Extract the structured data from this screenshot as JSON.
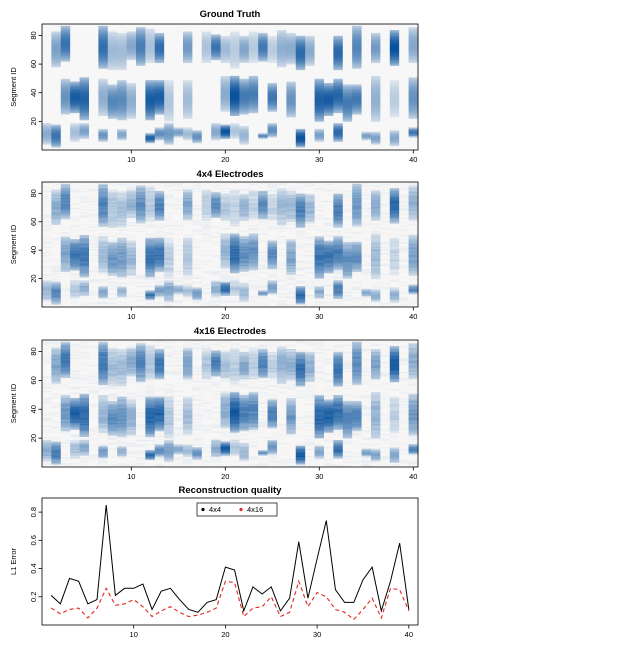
{
  "chart_data": [
    {
      "type": "heatmap",
      "title": "Ground Truth",
      "ylabel": "Segment ID",
      "xlabel": "",
      "xlim": [
        0.5,
        40.5
      ],
      "ylim": [
        0,
        88
      ],
      "xticks": [
        10,
        20,
        30,
        40
      ],
      "yticks": [
        20,
        40,
        60,
        80
      ],
      "colormap": {
        "neg": "#fbe3d8",
        "zero": "#f7f7f7",
        "pos": "#08519c"
      },
      "intensity_scale": 1.0,
      "seed": 11
    },
    {
      "type": "heatmap",
      "title": "4x4 Electrodes",
      "ylabel": "Segment ID",
      "xlabel": "",
      "xlim": [
        0.5,
        40.5
      ],
      "ylim": [
        0,
        88
      ],
      "xticks": [
        10,
        20,
        30,
        40
      ],
      "yticks": [
        20,
        40,
        60,
        80
      ],
      "colormap": {
        "neg": "#fbe3d8",
        "zero": "#f7f7f7",
        "pos": "#08519c"
      },
      "intensity_scale": 0.85,
      "seed": 11
    },
    {
      "type": "heatmap",
      "title": "4x16 Electrodes",
      "ylabel": "Segment ID",
      "xlabel": "",
      "xlim": [
        0.5,
        40.5
      ],
      "ylim": [
        0,
        88
      ],
      "xticks": [
        10,
        20,
        30,
        40
      ],
      "yticks": [
        20,
        40,
        60,
        80
      ],
      "colormap": {
        "neg": "#fbe3d8",
        "zero": "#f7f7f7",
        "pos": "#08519c"
      },
      "intensity_scale": 0.95,
      "seed": 11
    },
    {
      "type": "line",
      "title": "Reconstruction quality",
      "ylabel": "L1 Error",
      "xlabel": "",
      "xlim": [
        0,
        41
      ],
      "ylim": [
        0.0,
        0.9
      ],
      "xticks": [
        10,
        20,
        30,
        40
      ],
      "yticks": [
        0.2,
        0.4,
        0.6,
        0.8
      ],
      "legend_position": "top-center",
      "x": [
        1,
        2,
        3,
        4,
        5,
        6,
        7,
        8,
        9,
        10,
        11,
        12,
        13,
        14,
        15,
        16,
        17,
        18,
        19,
        20,
        21,
        22,
        23,
        24,
        25,
        26,
        27,
        28,
        29,
        30,
        31,
        32,
        33,
        34,
        35,
        36,
        37,
        38,
        39,
        40
      ],
      "series": [
        {
          "name": "4x4",
          "color": "#000000",
          "style": "solid",
          "values": [
            0.21,
            0.15,
            0.33,
            0.31,
            0.15,
            0.18,
            0.85,
            0.21,
            0.26,
            0.26,
            0.29,
            0.11,
            0.24,
            0.26,
            0.18,
            0.11,
            0.09,
            0.16,
            0.18,
            0.41,
            0.39,
            0.1,
            0.27,
            0.22,
            0.27,
            0.1,
            0.19,
            0.59,
            0.19,
            0.47,
            0.74,
            0.25,
            0.16,
            0.16,
            0.32,
            0.41,
            0.1,
            0.31,
            0.58,
            0.11
          ]
        },
        {
          "name": "4x16",
          "color": "#e0281e",
          "style": "dashed",
          "values": [
            0.12,
            0.08,
            0.11,
            0.12,
            0.05,
            0.12,
            0.26,
            0.14,
            0.15,
            0.18,
            0.13,
            0.06,
            0.1,
            0.13,
            0.09,
            0.06,
            0.07,
            0.09,
            0.12,
            0.31,
            0.3,
            0.06,
            0.12,
            0.13,
            0.2,
            0.06,
            0.09,
            0.31,
            0.13,
            0.23,
            0.2,
            0.11,
            0.09,
            0.04,
            0.11,
            0.19,
            0.05,
            0.26,
            0.25,
            0.1
          ]
        }
      ]
    }
  ]
}
